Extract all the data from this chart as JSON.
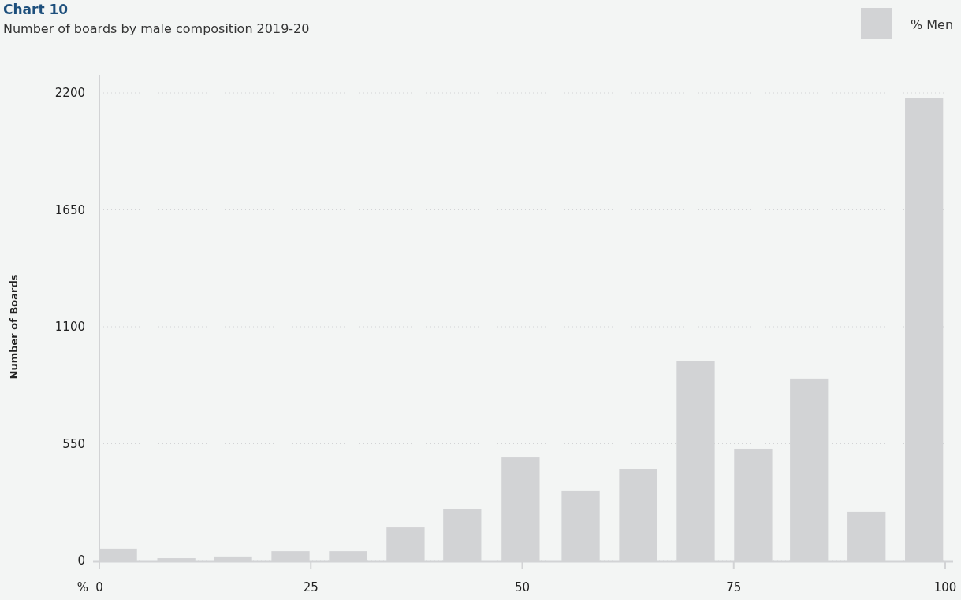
{
  "chart_data": {
    "type": "bar",
    "title": "Chart 10",
    "subtitle": "Number of boards by male composition 2019-20",
    "xlabel": "%",
    "ylabel": "Number of Boards",
    "x": [
      2.2,
      9.1,
      15.8,
      22.6,
      29.4,
      36.2,
      42.9,
      49.8,
      56.9,
      63.7,
      70.5,
      77.3,
      83.9,
      90.7,
      97.5
    ],
    "series": [
      {
        "name": "% Men",
        "color": "#d2d3d5",
        "values": [
          56,
          11,
          19,
          44,
          44,
          159,
          244,
          485,
          330,
          430,
          937,
          526,
          856,
          230,
          2174
        ]
      }
    ],
    "xlim": [
      0,
      100
    ],
    "xticks": [
      0,
      25,
      50,
      75,
      100
    ],
    "ylim": [
      0,
      2200
    ],
    "yticks": [
      0,
      550,
      1100,
      1650,
      2200
    ],
    "grid": "y",
    "legend": "top right"
  }
}
